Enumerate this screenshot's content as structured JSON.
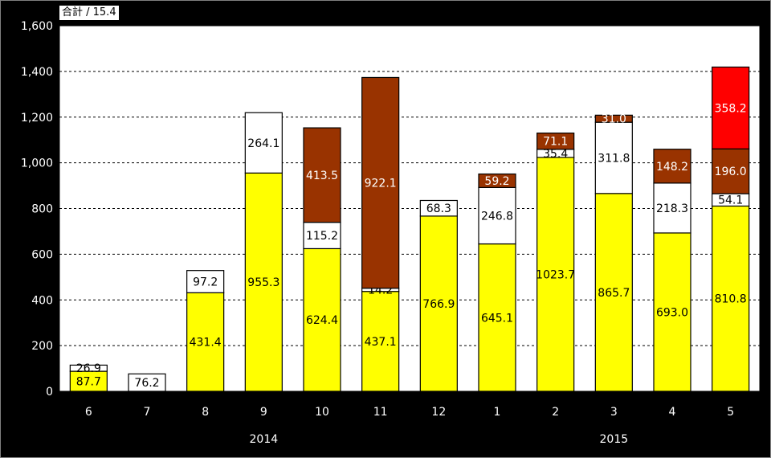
{
  "badge": {
    "text": "合計 / 15.4"
  },
  "chart_data": {
    "type": "bar",
    "stacked": true,
    "ylim": [
      0,
      1600
    ],
    "yticks": [
      0,
      200,
      400,
      600,
      800,
      1000,
      1200,
      1400,
      1600
    ],
    "ytick_labels": [
      "0",
      "200",
      "400",
      "600",
      "800",
      "1,000",
      "1,200",
      "1,400",
      "1,600"
    ],
    "categories": [
      "6",
      "7",
      "8",
      "9",
      "10",
      "11",
      "12",
      "1",
      "2",
      "3",
      "4",
      "5"
    ],
    "groups": [
      {
        "label": "2014",
        "from": 0,
        "to": 6
      },
      {
        "label": "2015",
        "from": 7,
        "to": 11
      }
    ],
    "grid": true,
    "colors": {
      "plot_bg": "#ffffff",
      "page_bg": "#000000"
    },
    "series": [
      {
        "color": "#ffff00",
        "text_color": "#000000",
        "values": [
          87.7,
          0,
          431.4,
          955.3,
          624.4,
          437.1,
          766.9,
          645.1,
          1023.7,
          865.7,
          693.0,
          810.8
        ],
        "labels": [
          "87.7",
          "",
          "431.4",
          "955.3",
          "624.4",
          "437.1",
          "766.9",
          "645.1",
          "1023.7",
          "865.7",
          "693.0",
          "810.8"
        ]
      },
      {
        "color": "#ffffff",
        "text_color": "#000000",
        "values": [
          26.9,
          76.2,
          97.2,
          264.1,
          115.2,
          14.2,
          68.3,
          246.8,
          35.4,
          311.8,
          218.3,
          54.1
        ],
        "labels": [
          "26.9",
          "76.2",
          "97.2",
          "264.1",
          "115.2",
          "14.2",
          "68.3",
          "246.8",
          "35.4",
          "311.8",
          "218.3",
          "54.1"
        ]
      },
      {
        "color": "#993300",
        "text_color": "#ffffff",
        "values": [
          0,
          0,
          0,
          0,
          413.5,
          922.1,
          0,
          59.2,
          71.1,
          31.0,
          148.2,
          196.0
        ],
        "labels": [
          "",
          "",
          "",
          "",
          "413.5",
          "922.1",
          "",
          "59.2",
          "71.1",
          "31.0",
          "148.2",
          "196.0"
        ]
      },
      {
        "color": "#ff0000",
        "text_color": "#ffffff",
        "values": [
          0,
          0,
          0,
          0,
          0,
          0,
          0,
          0,
          0,
          0,
          0,
          358.2
        ],
        "labels": [
          "",
          "",
          "",
          "",
          "",
          "",
          "",
          "",
          "",
          "",
          "",
          "358.2"
        ]
      }
    ]
  }
}
